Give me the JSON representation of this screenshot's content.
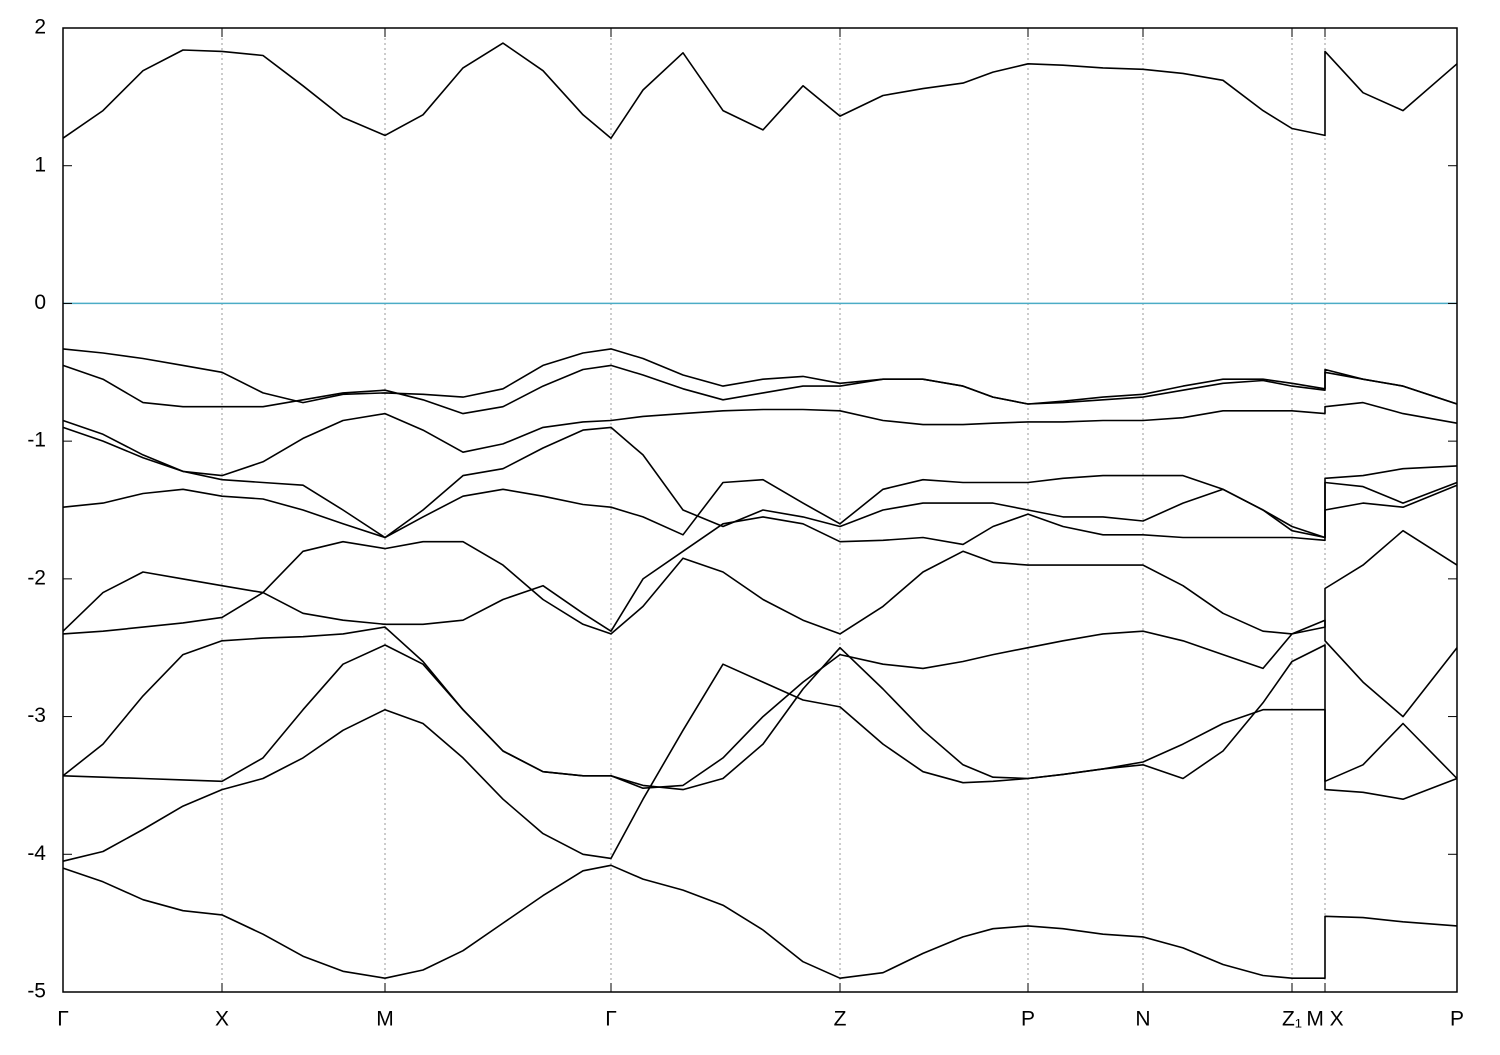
{
  "chart_data": {
    "type": "line",
    "line_color": "#000000",
    "xgrid": true,
    "ygrid": false,
    "hline": {
      "value": 0,
      "color": "#4bacc6"
    },
    "xlim": [
      0,
      13.94
    ],
    "ylim": [
      -5,
      2
    ],
    "yticks": [
      -5,
      -4,
      -3,
      -2,
      -1,
      0,
      1,
      2
    ],
    "xticks": [
      {
        "value": 0,
        "label": "Γ"
      },
      {
        "value": 1.59,
        "label": "X"
      },
      {
        "value": 3.22,
        "label": "M"
      },
      {
        "value": 5.48,
        "label": "Γ"
      },
      {
        "value": 7.77,
        "label": "Z"
      },
      {
        "value": 9.65,
        "label": "P"
      },
      {
        "value": 10.8,
        "label": "N"
      },
      {
        "value": 12.29,
        "label": "Z₁"
      },
      {
        "value": 12.62,
        "label": "M X"
      },
      {
        "value": 13.94,
        "label": "P"
      }
    ],
    "x": [
      0,
      0.4,
      0.8,
      1.2,
      1.59,
      2.0,
      2.4,
      2.8,
      3.22,
      3.6,
      4.0,
      4.4,
      4.8,
      5.2,
      5.48,
      5.8,
      6.2,
      6.6,
      7.0,
      7.4,
      7.77,
      8.2,
      8.6,
      9.0,
      9.3,
      9.65,
      10.0,
      10.4,
      10.8,
      11.2,
      11.6,
      12.0,
      12.29,
      12.62,
      12.62,
      13.0,
      13.4,
      13.94
    ],
    "series": [
      {
        "values": [
          1.2,
          1.4,
          1.69,
          1.84,
          1.83,
          1.8,
          1.58,
          1.35,
          1.22,
          1.37,
          1.71,
          1.89,
          1.69,
          1.37,
          1.2,
          1.55,
          1.82,
          1.4,
          1.26,
          1.58,
          1.36,
          1.51,
          1.56,
          1.6,
          1.68,
          1.74,
          1.73,
          1.71,
          1.7,
          1.67,
          1.62,
          1.4,
          1.27,
          1.22,
          1.83,
          1.53,
          1.4,
          1.74
        ]
      },
      {
        "values": [
          -0.33,
          -0.36,
          -0.4,
          -0.45,
          -0.5,
          -0.65,
          -0.72,
          -0.66,
          -0.65,
          -0.66,
          -0.68,
          -0.62,
          -0.45,
          -0.36,
          -0.33,
          -0.4,
          -0.52,
          -0.6,
          -0.55,
          -0.53,
          -0.58,
          -0.55,
          -0.55,
          -0.6,
          -0.68,
          -0.73,
          -0.71,
          -0.68,
          -0.66,
          -0.6,
          -0.55,
          -0.55,
          -0.58,
          -0.62,
          -0.48,
          -0.55,
          -0.6,
          -0.73
        ]
      },
      {
        "values": [
          -0.45,
          -0.55,
          -0.72,
          -0.75,
          -0.75,
          -0.75,
          -0.7,
          -0.65,
          -0.63,
          -0.7,
          -0.8,
          -0.75,
          -0.6,
          -0.48,
          -0.45,
          -0.52,
          -0.62,
          -0.7,
          -0.65,
          -0.6,
          -0.6,
          -0.55,
          -0.55,
          -0.6,
          -0.68,
          -0.73,
          -0.72,
          -0.7,
          -0.68,
          -0.63,
          -0.58,
          -0.56,
          -0.6,
          -0.63,
          -0.5,
          -0.55,
          -0.6,
          -0.73
        ]
      },
      {
        "values": [
          -0.85,
          -0.95,
          -1.1,
          -1.22,
          -1.25,
          -1.15,
          -0.98,
          -0.85,
          -0.8,
          -0.92,
          -1.08,
          -1.02,
          -0.9,
          -0.86,
          -0.85,
          -0.82,
          -0.8,
          -0.78,
          -0.77,
          -0.77,
          -0.78,
          -0.85,
          -0.88,
          -0.88,
          -0.87,
          -0.86,
          -0.86,
          -0.85,
          -0.85,
          -0.83,
          -0.78,
          -0.78,
          -0.78,
          -0.8,
          -0.75,
          -0.72,
          -0.8,
          -0.87
        ]
      },
      {
        "values": [
          -0.9,
          -1.0,
          -1.12,
          -1.22,
          -1.28,
          -1.3,
          -1.32,
          -1.5,
          -1.7,
          -1.5,
          -1.25,
          -1.2,
          -1.05,
          -0.92,
          -0.9,
          -1.1,
          -1.5,
          -1.62,
          -1.5,
          -1.55,
          -1.62,
          -1.5,
          -1.45,
          -1.45,
          -1.45,
          -1.5,
          -1.55,
          -1.55,
          -1.58,
          -1.45,
          -1.35,
          -1.5,
          -1.65,
          -1.7,
          -1.27,
          -1.25,
          -1.2,
          -1.18
        ]
      },
      {
        "values": [
          -1.48,
          -1.45,
          -1.38,
          -1.35,
          -1.4,
          -1.42,
          -1.5,
          -1.6,
          -1.7,
          -1.55,
          -1.4,
          -1.35,
          -1.4,
          -1.46,
          -1.48,
          -1.55,
          -1.68,
          -1.3,
          -1.28,
          -1.45,
          -1.6,
          -1.35,
          -1.28,
          -1.3,
          -1.3,
          -1.3,
          -1.27,
          -1.25,
          -1.25,
          -1.25,
          -1.35,
          -1.5,
          -1.62,
          -1.7,
          -1.3,
          -1.33,
          -1.45,
          -1.3
        ]
      },
      {
        "values": [
          -2.38,
          -2.1,
          -1.95,
          -2.0,
          -2.05,
          -2.1,
          -2.25,
          -2.3,
          -2.33,
          -2.33,
          -2.3,
          -2.15,
          -2.05,
          -2.25,
          -2.38,
          -2.0,
          -1.8,
          -1.6,
          -1.55,
          -1.6,
          -1.73,
          -1.72,
          -1.7,
          -1.75,
          -1.62,
          -1.53,
          -1.62,
          -1.68,
          -1.68,
          -1.7,
          -1.7,
          -1.7,
          -1.7,
          -1.72,
          -1.5,
          -1.45,
          -1.48,
          -1.32
        ]
      },
      {
        "values": [
          -2.4,
          -2.38,
          -2.35,
          -2.32,
          -2.28,
          -2.1,
          -1.8,
          -1.73,
          -1.78,
          -1.73,
          -1.73,
          -1.9,
          -2.15,
          -2.33,
          -2.4,
          -2.2,
          -1.85,
          -1.95,
          -2.15,
          -2.3,
          -2.4,
          -2.2,
          -1.95,
          -1.8,
          -1.88,
          -1.9,
          -1.9,
          -1.9,
          -1.9,
          -2.05,
          -2.25,
          -2.38,
          -2.4,
          -2.35,
          -2.07,
          -1.9,
          -1.65,
          -1.9
        ]
      },
      {
        "values": [
          -3.43,
          -3.2,
          -2.85,
          -2.55,
          -2.45,
          -2.43,
          -2.42,
          -2.4,
          -2.35,
          -2.6,
          -2.95,
          -3.25,
          -3.4,
          -3.43,
          -3.43,
          -3.52,
          -3.5,
          -3.3,
          -3.0,
          -2.75,
          -2.55,
          -2.62,
          -2.65,
          -2.6,
          -2.55,
          -2.5,
          -2.45,
          -2.4,
          -2.38,
          -2.45,
          -2.55,
          -2.65,
          -2.4,
          -2.3,
          -2.45,
          -2.75,
          -3.0,
          -2.5
        ]
      },
      {
        "values": [
          -3.43,
          -3.44,
          -3.45,
          -3.46,
          -3.47,
          -3.3,
          -2.95,
          -2.62,
          -2.48,
          -2.62,
          -2.95,
          -3.25,
          -3.4,
          -3.43,
          -3.43,
          -3.5,
          -3.53,
          -3.45,
          -3.2,
          -2.8,
          -2.5,
          -2.8,
          -3.1,
          -3.35,
          -3.44,
          -3.45,
          -3.42,
          -3.38,
          -3.35,
          -3.45,
          -3.25,
          -2.9,
          -2.6,
          -2.48,
          -3.47,
          -3.35,
          -3.05,
          -3.45
        ]
      },
      {
        "values": [
          -4.05,
          -3.98,
          -3.82,
          -3.65,
          -3.53,
          -3.45,
          -3.3,
          -3.1,
          -2.95,
          -3.05,
          -3.3,
          -3.6,
          -3.85,
          -4.0,
          -4.03,
          -3.6,
          -3.1,
          -2.62,
          -2.75,
          -2.88,
          -2.93,
          -3.2,
          -3.4,
          -3.48,
          -3.47,
          -3.45,
          -3.42,
          -3.38,
          -3.33,
          -3.2,
          -3.05,
          -2.95,
          -2.95,
          -2.95,
          -3.53,
          -3.55,
          -3.6,
          -3.45
        ]
      },
      {
        "values": [
          -4.1,
          -4.2,
          -4.33,
          -4.41,
          -4.44,
          -4.58,
          -4.74,
          -4.85,
          -4.9,
          -4.84,
          -4.7,
          -4.5,
          -4.3,
          -4.12,
          -4.08,
          -4.18,
          -4.26,
          -4.37,
          -4.55,
          -4.78,
          -4.9,
          -4.86,
          -4.72,
          -4.6,
          -4.54,
          -4.52,
          -4.54,
          -4.58,
          -4.6,
          -4.68,
          -4.8,
          -4.88,
          -4.9,
          -4.9,
          -4.45,
          -4.46,
          -4.49,
          -4.52
        ]
      }
    ]
  }
}
